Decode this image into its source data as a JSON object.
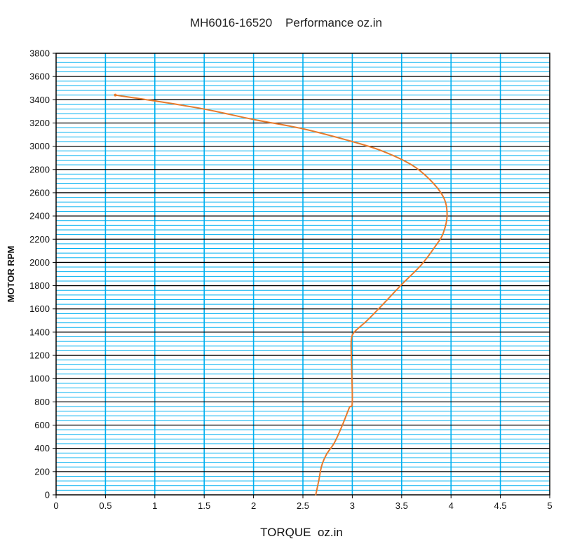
{
  "chart_data": {
    "type": "line",
    "title": "MH6016-16520    Performance oz.in",
    "xlabel": "TORQUE  oz.in",
    "ylabel": "MOTOR RPM",
    "xlim": [
      0,
      5
    ],
    "ylim": [
      0,
      3800
    ],
    "x_ticks": [
      "0",
      "0.5",
      "1",
      "1.5",
      "2",
      "2.5",
      "3",
      "3.5",
      "4",
      "4.5",
      "5"
    ],
    "y_ticks": [
      "0",
      "200",
      "400",
      "600",
      "800",
      "1000",
      "1200",
      "1400",
      "1600",
      "1800",
      "2000",
      "2200",
      "2400",
      "2600",
      "2800",
      "3000",
      "3200",
      "3400",
      "3600",
      "3800"
    ],
    "grid": true,
    "colors": {
      "background": "#ffffff",
      "major_grid": "#000000",
      "minor_grid": "#00b0f0",
      "series": "#e87b2c"
    },
    "series": [
      {
        "x": [
          0.6,
          1.0,
          1.5,
          2.0,
          2.5,
          3.0,
          3.3,
          3.6,
          3.8,
          3.93,
          3.96,
          3.92,
          3.85,
          3.7,
          3.5,
          3.3,
          3.15,
          3.02,
          2.99,
          2.99,
          3.0,
          2.97,
          2.9,
          2.82,
          2.74,
          2.69,
          2.66,
          2.63
        ],
        "y": [
          3440,
          3390,
          3320,
          3230,
          3150,
          3040,
          2960,
          2840,
          2700,
          2550,
          2400,
          2250,
          2150,
          1980,
          1810,
          1630,
          1500,
          1400,
          1330,
          1200,
          800,
          750,
          600,
          450,
          350,
          250,
          120,
          0
        ]
      }
    ]
  }
}
